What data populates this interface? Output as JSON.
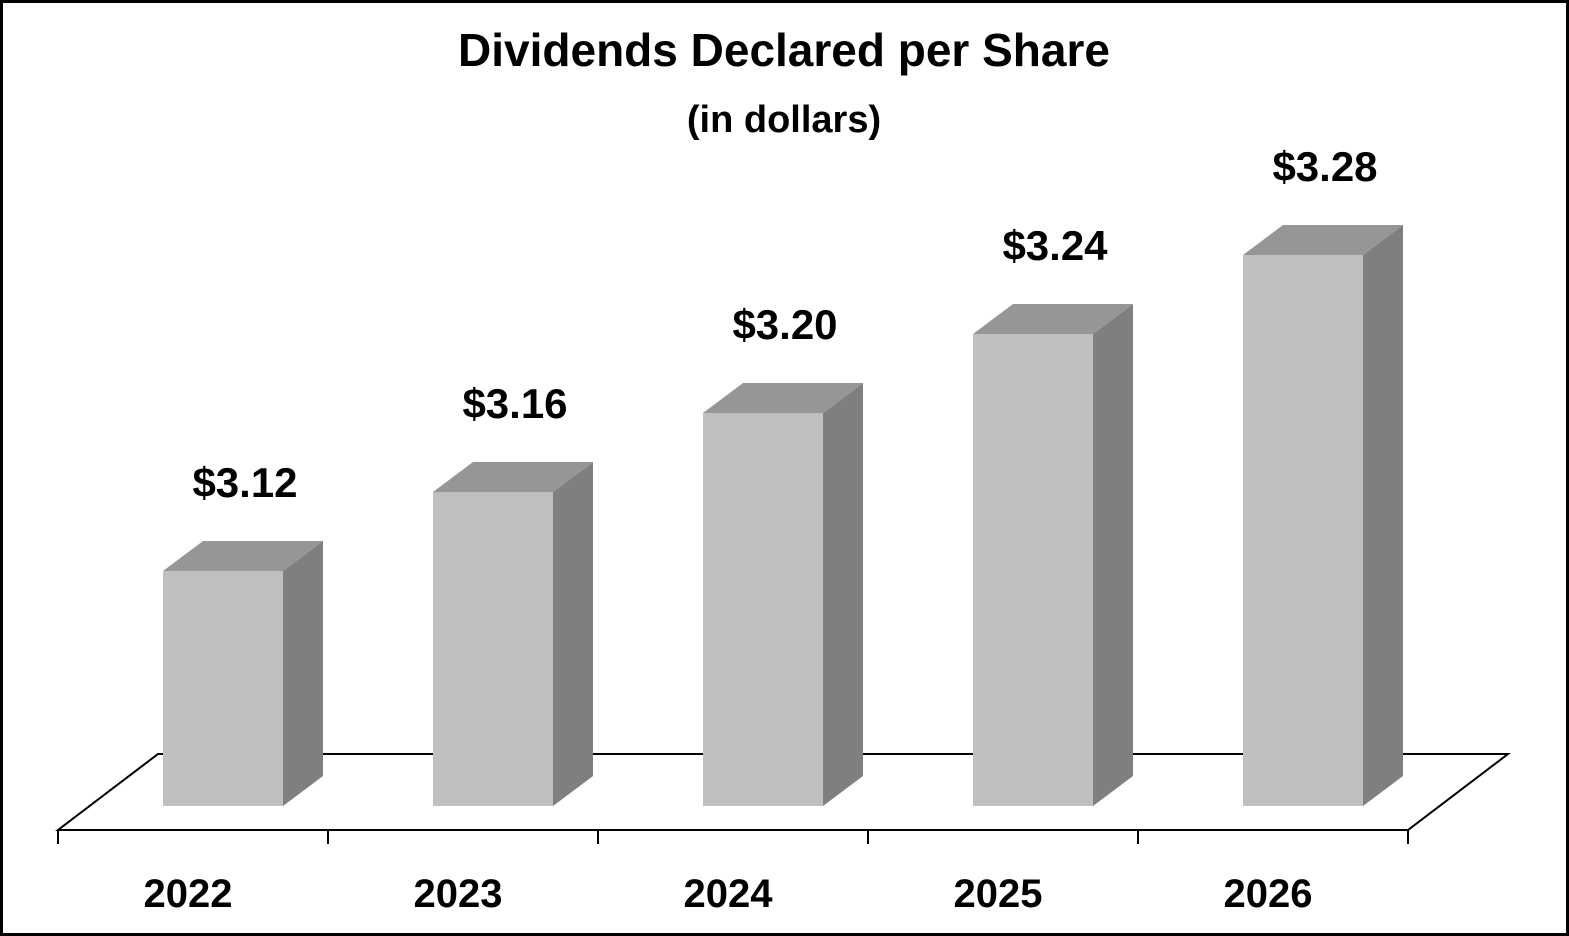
{
  "chart_data": {
    "type": "bar",
    "style": "3d-column",
    "title": "Dividends Declared per Share",
    "subtitle": "(in dollars)",
    "categories": [
      "2022",
      "2023",
      "2024",
      "2025",
      "2026"
    ],
    "values": [
      3.12,
      3.16,
      3.2,
      3.24,
      3.28
    ],
    "data_labels": [
      "$3.12",
      "$3.16",
      "$3.20",
      "$3.24",
      "$3.28"
    ],
    "grid": false,
    "legend": "none",
    "colors": {
      "bar_front": "#bfbfbf",
      "bar_top": "#969696",
      "bar_side": "#7f7f7f",
      "floor_stroke": "#000000",
      "border": "#000000"
    }
  }
}
